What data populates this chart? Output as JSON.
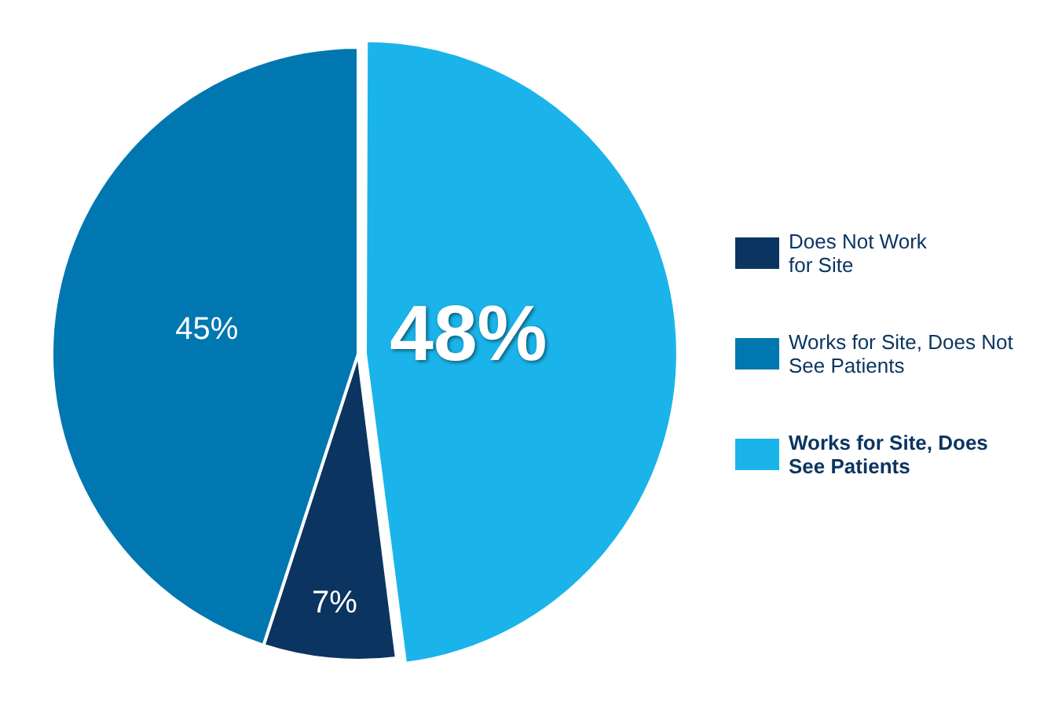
{
  "chart_data": {
    "type": "pie",
    "categories": [
      "Does Not Work for Site",
      "Works for Site, Does Not See Patients",
      "Works for Site, Does See Patients"
    ],
    "values": [
      7,
      45,
      48
    ],
    "colors": [
      "#0b3560",
      "#0077b0",
      "#1ab4ea"
    ],
    "value_labels": [
      "7%",
      "45%",
      "48%"
    ],
    "legend": "right"
  }
}
